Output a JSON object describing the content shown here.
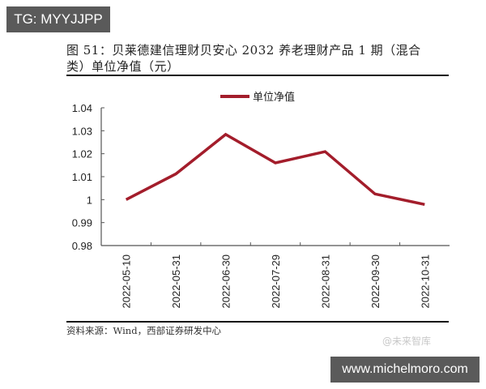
{
  "overlays": {
    "tg_label": "TG: MYYJJPP",
    "url_label": "www.michelmoro.com",
    "watermark": "@未来智库"
  },
  "figure": {
    "title_line1": "图 51：贝莱德建信理财贝安心 2032 养老理财产品 1 期（混合",
    "title_line2": "类）单位净值（元）",
    "source": "资料来源：Wind，西部证券研发中心"
  },
  "colors": {
    "line": "#a31d2b",
    "axis": "#555555",
    "badge_bg": "#5a5a5a"
  },
  "chart_data": {
    "type": "line",
    "title": "贝莱德建信理财贝安心 2032 养老理财产品 1 期（混合类）单位净值（元）",
    "xlabel": "",
    "ylabel": "",
    "categories": [
      "2022-05-10",
      "2022-05-31",
      "2022-06-30",
      "2022-07-29",
      "2022-08-31",
      "2022-09-30",
      "2022-10-31"
    ],
    "series": [
      {
        "name": "单位净值",
        "values": [
          1.0,
          1.0112,
          1.0284,
          1.016,
          1.0209,
          1.0025,
          0.9979
        ]
      }
    ],
    "ylim": [
      0.98,
      1.04
    ],
    "yticks": [
      "1.04",
      "1.03",
      "1.02",
      "1.01",
      "1",
      "0.99",
      "0.98"
    ],
    "grid": false,
    "legend_position": "top"
  }
}
